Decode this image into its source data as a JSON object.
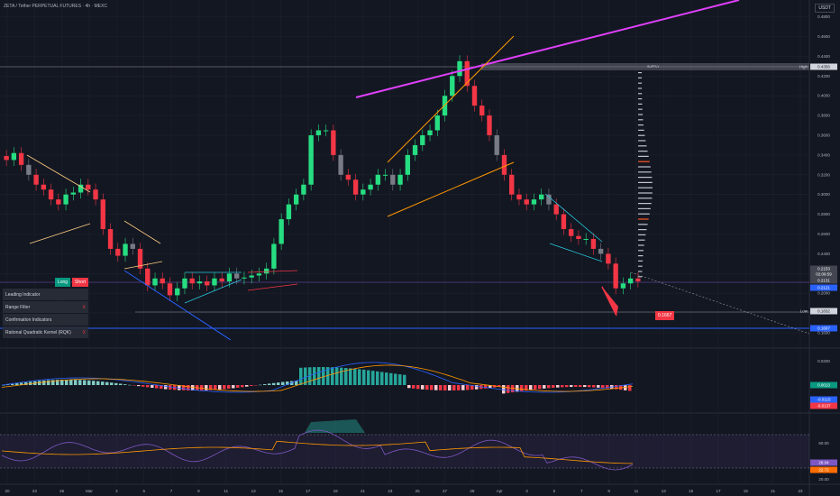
{
  "header": {
    "title": "ZETA / Tether PERPETUAL FUTURES · 4h · MEXC",
    "currency": "USDT"
  },
  "colors": {
    "background": "#131722",
    "bull": "#26de81",
    "bear": "#f23645",
    "pink": "#e040fb",
    "orange": "#ff9800",
    "blue": "#2962ff",
    "cyan": "#26c6da"
  },
  "chart_data": [
    {
      "type": "candlestick",
      "panel": "price",
      "y_scale": {
        "min": 0.15,
        "max": 0.48
      },
      "y_ticks": [
        "0.4800",
        "0.4600",
        "0.4400",
        "0.4200",
        "0.4000",
        "0.3800",
        "0.3600",
        "0.3400",
        "0.3200",
        "0.3000",
        "0.2800",
        "0.2600",
        "0.2400",
        "0.2200",
        "0.2000",
        "0.1800",
        "0.1600"
      ],
      "x_ticks": [
        "20",
        "23",
        "26",
        "Mar",
        "3",
        "5",
        "7",
        "9",
        "11",
        "13",
        "15",
        "17",
        "19",
        "21",
        "23",
        "25",
        "27",
        "29",
        "Apr",
        "3",
        "5",
        "7",
        "9",
        "11",
        "13",
        "15",
        "17",
        "19",
        "21",
        "23"
      ],
      "price_tags": [
        {
          "prefix": "High",
          "label": "0.4356",
          "kind": "white"
        },
        {
          "label": "0.2153",
          "kind": "gray"
        },
        {
          "label": "02:09:59",
          "kind": "gray"
        },
        {
          "label": "0.2131",
          "kind": "gray"
        },
        {
          "label": "0.2121",
          "kind": "blue"
        },
        {
          "prefix": "Low",
          "label": "0.1832",
          "kind": "white"
        },
        {
          "label": "0.1667",
          "kind": "blue"
        }
      ],
      "annotations": {
        "supply": "SUPPLY",
        "target": "0.1667"
      },
      "series": [
        {
          "name": "close",
          "values": [
            0.335,
            0.342,
            0.33,
            0.32,
            0.31,
            0.305,
            0.295,
            0.29,
            0.3,
            0.302,
            0.31,
            0.305,
            0.295,
            0.265,
            0.245,
            0.238,
            0.25,
            0.245,
            0.225,
            0.208,
            0.215,
            0.21,
            0.198,
            0.205,
            0.215,
            0.21,
            0.212,
            0.208,
            0.215,
            0.212,
            0.22,
            0.215,
            0.216,
            0.218,
            0.22,
            0.225,
            0.25,
            0.275,
            0.29,
            0.3,
            0.31,
            0.36,
            0.365,
            0.365,
            0.34,
            0.32,
            0.315,
            0.3,
            0.305,
            0.31,
            0.32,
            0.32,
            0.31,
            0.32,
            0.34,
            0.35,
            0.36,
            0.365,
            0.38,
            0.4,
            0.42,
            0.435,
            0.41,
            0.39,
            0.38,
            0.36,
            0.34,
            0.32,
            0.3,
            0.295,
            0.29,
            0.295,
            0.3,
            0.29,
            0.28,
            0.265,
            0.258,
            0.255,
            0.255,
            0.245,
            0.24,
            0.23,
            0.205,
            0.21,
            0.215,
            0.212
          ]
        }
      ]
    },
    {
      "type": "histogram",
      "panel": "oscillator",
      "y_ticks": [
        "0.0200",
        "0.0000"
      ],
      "price_tags": [
        {
          "label": "0.0013",
          "kind": "green"
        },
        {
          "label": "-0.0115",
          "kind": "blue"
        },
        {
          "label": "-0.0137",
          "kind": "red"
        }
      ]
    },
    {
      "type": "line",
      "panel": "rsi",
      "y_ticks": [
        "60.00",
        "40.00",
        "20.00"
      ],
      "price_tags": [
        {
          "label": "28.04",
          "kind": "purple"
        },
        {
          "label": "22.72",
          "kind": "orange"
        }
      ]
    }
  ],
  "panel": {
    "long_label": "Long",
    "short_label": "Short",
    "rows": [
      {
        "label": "Leading Indicator",
        "mark": ""
      },
      {
        "label": "Range Filter",
        "mark": "X"
      },
      {
        "label": "Confirmation Indicators",
        "mark": ""
      },
      {
        "label": "Rational Quadratic Kernel (RQK)",
        "mark": "X"
      }
    ]
  }
}
